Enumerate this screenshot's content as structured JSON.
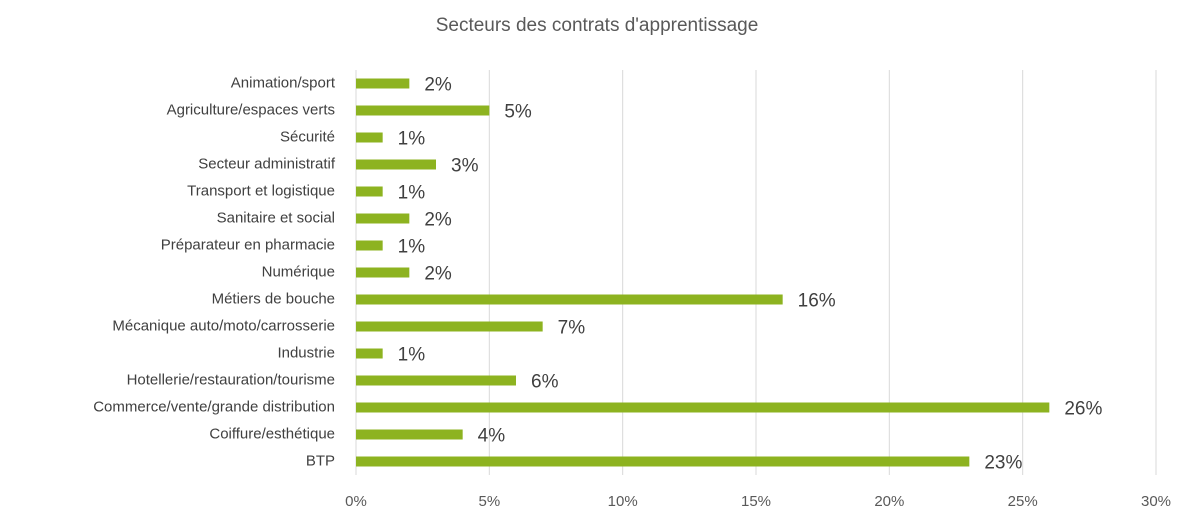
{
  "chart_data": {
    "type": "bar",
    "orientation": "horizontal",
    "title": "Secteurs des contrats d'apprentissage",
    "categories": [
      "Animation/sport",
      "Agriculture/espaces verts",
      "Sécurité",
      "Secteur administratif",
      "Transport et logistique",
      "Sanitaire et social",
      "Préparateur en pharmacie",
      "Numérique",
      "Métiers de bouche",
      "Mécanique auto/moto/carrosserie",
      "Industrie",
      "Hotellerie/restauration/tourisme",
      "Commerce/vente/grande distribution",
      "Coiffure/esthétique",
      "BTP"
    ],
    "values": [
      2,
      5,
      1,
      3,
      1,
      2,
      1,
      2,
      16,
      7,
      1,
      6,
      26,
      4,
      23
    ],
    "value_labels": [
      "2%",
      "5%",
      "1%",
      "3%",
      "1%",
      "2%",
      "1%",
      "2%",
      "16%",
      "7%",
      "1%",
      "6%",
      "26%",
      "4%",
      "23%"
    ],
    "color": "#8db320",
    "xlim": [
      0,
      30
    ],
    "xticks": [
      {
        "value": 0,
        "label": "0%"
      },
      {
        "value": 5,
        "label": "5%"
      },
      {
        "value": 10,
        "label": "10%"
      },
      {
        "value": 15,
        "label": "15%"
      },
      {
        "value": 20,
        "label": "20%"
      },
      {
        "value": 25,
        "label": "25%"
      },
      {
        "value": 30,
        "label": "30%"
      }
    ],
    "grid": true
  }
}
